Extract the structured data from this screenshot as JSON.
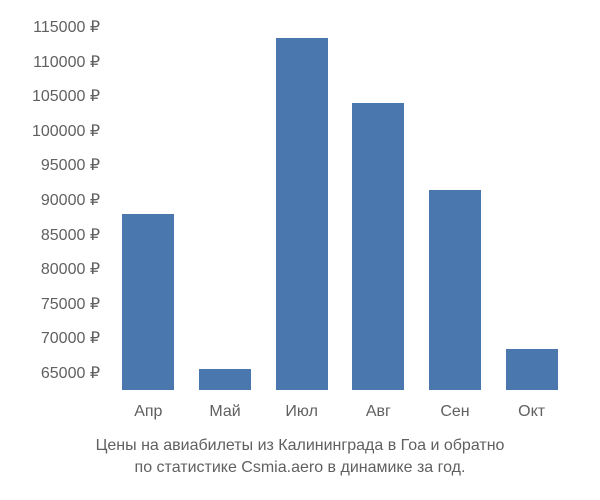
{
  "chart": {
    "type": "bar",
    "background_color": "#ffffff",
    "bar_color": "#4a77ad",
    "text_color": "#606060",
    "font_size_labels": 16,
    "font_size_caption": 16,
    "ylim": [
      62500,
      117500
    ],
    "ytick_step": 5000,
    "y_ticks": [
      65000,
      70000,
      75000,
      80000,
      85000,
      90000,
      95000,
      100000,
      105000,
      110000,
      115000
    ],
    "currency_symbol": "₽",
    "categories": [
      "Апр",
      "Май",
      "Июл",
      "Авг",
      "Сен",
      "Окт"
    ],
    "values": [
      88000,
      65500,
      113500,
      104000,
      91500,
      68500
    ],
    "bar_width": 0.68,
    "caption_line1": "Цены на авиабилеты из Калининграда в Гоа и обратно",
    "caption_line2": "по статистике Csmia.aero в динамике за год."
  }
}
